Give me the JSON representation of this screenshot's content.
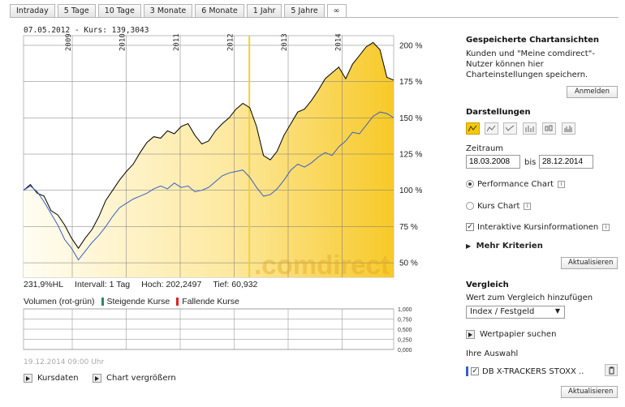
{
  "tabs": [
    "Intraday",
    "5 Tage",
    "10 Tage",
    "3 Monate",
    "6 Monate",
    "1 Jahr",
    "5 Jahre",
    "∞"
  ],
  "active_tab": 7,
  "chart_header": "07.05.2012  -  Kurs: 139,3043",
  "watermark": ".comdirect",
  "stats": {
    "change": "231,9%HL",
    "interval": "Intervall: 1 Tag",
    "high": "Hoch: 202,2497",
    "low": "Tief:  60,932"
  },
  "volume": {
    "label": "Volumen (rot-grün)",
    "rising": "Steigende Kurse",
    "falling": "Fallende Kurse"
  },
  "timestamp": "19.12.2014 09:00 Uhr",
  "bottom_links": {
    "kursdaten": "Kursdaten",
    "enlarge": "Chart vergrößern"
  },
  "panel": {
    "saved_title": "Gespeicherte Chartansichten",
    "saved_text": "Kunden und \"Meine comdirect\"-Nutzer können hier Charteinstellungen speichern.",
    "login_button": "Anmelden",
    "display_title": "Darstellungen",
    "zeitraum_label": "Zeitraum",
    "date_from": "18.03.2008",
    "bis": "bis",
    "date_to": "28.12.2014",
    "performance_chart": "Performance Chart",
    "kurs_chart": "Kurs Chart",
    "interactive": "Interaktive Kursinformationen",
    "more_criteria": "Mehr Kriterien",
    "update_button": "Aktualisieren",
    "compare_title": "Vergleich",
    "compare_add": "Wert zum Vergleich hinzufügen",
    "compare_select": "Index / Festgeld",
    "security_search": "Wertpapier suchen",
    "your_selection": "Ihre Auswahl",
    "selection_item": "DB X-TRACKERS STOXX ..",
    "update_button_2": "Aktualisieren"
  },
  "colors": {
    "accent": "#f5c800",
    "series_main": "#000000",
    "series_compare": "#3a5ec8",
    "marker": "#f0d040"
  },
  "chart_data": {
    "type": "line",
    "x_labels": [
      "2009",
      "2010",
      "2011",
      "2012",
      "2013",
      "2014"
    ],
    "y_ticks": [
      "200 %",
      "175 %",
      "150 %",
      "125 %",
      "100 %",
      "75 %",
      "50 %"
    ],
    "y_values": [
      200,
      175,
      150,
      125,
      100,
      75,
      50
    ],
    "ylim": [
      40,
      205
    ],
    "volume_ticks": [
      "1,000",
      "0,750",
      "0,500",
      "0,250",
      "0,000"
    ],
    "series": [
      {
        "values": [
          100,
          104,
          98,
          96,
          86,
          83,
          76,
          67,
          60,
          67,
          73,
          82,
          93,
          100,
          107,
          113,
          118,
          126,
          133,
          137,
          136,
          141,
          139,
          144,
          146,
          138,
          132,
          134,
          141,
          146,
          150,
          156,
          160,
          157,
          144,
          124,
          121,
          127,
          138,
          146,
          154,
          156,
          162,
          169,
          177,
          181,
          185,
          177,
          187,
          193,
          199,
          202,
          197,
          178,
          176
        ]
      },
      {
        "values": [
          100,
          103,
          99,
          92,
          84,
          76,
          66,
          60,
          52,
          58,
          64,
          69,
          75,
          82,
          88,
          91,
          94,
          96,
          98,
          101,
          103,
          101,
          105,
          102,
          103,
          99,
          100,
          102,
          106,
          110,
          112,
          113,
          114,
          109,
          102,
          96,
          97,
          101,
          107,
          114,
          118,
          116,
          119,
          123,
          126,
          124,
          130,
          134,
          140,
          139,
          145,
          151,
          154,
          153,
          150
        ]
      }
    ],
    "marker_x": 0.61,
    "grid": true
  }
}
